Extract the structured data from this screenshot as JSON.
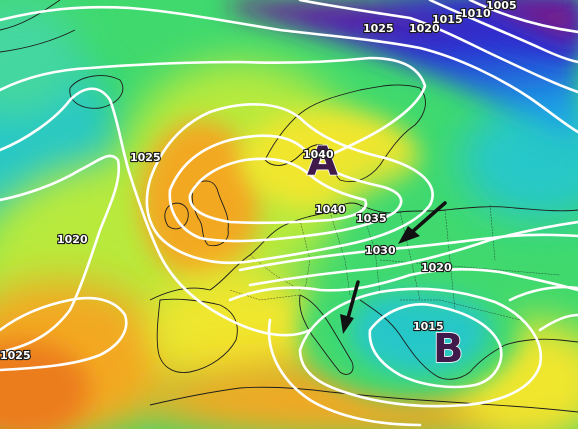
{
  "isobar_labels": [
    {
      "id": "l1005a",
      "text": "1005"
    },
    {
      "id": "l1010",
      "text": "1010"
    },
    {
      "id": "l1015a",
      "text": "1015"
    },
    {
      "id": "l1020a",
      "text": "1020"
    },
    {
      "id": "l1025a",
      "text": "1025"
    },
    {
      "id": "l1025b",
      "text": "1025"
    },
    {
      "id": "l1020b",
      "text": "1020"
    },
    {
      "id": "l1025c",
      "text": "1025"
    },
    {
      "id": "l1040a",
      "text": "1040"
    },
    {
      "id": "l1040b",
      "text": "1040"
    },
    {
      "id": "l1035",
      "text": "1035"
    },
    {
      "id": "l1030",
      "text": "1030"
    },
    {
      "id": "l1020c",
      "text": "1020"
    },
    {
      "id": "l1015b",
      "text": "1015"
    }
  ],
  "pressure_centers": {
    "high": "A",
    "low": "B"
  },
  "colors": {
    "purple": "#8a1a78",
    "blue": "#1e5fd6",
    "cyan": "#27c7c8",
    "green": "#3fd96e",
    "lime": "#b8ea3c",
    "yellow": "#f0e62e",
    "orange": "#f3a822",
    "darkorange": "#ec7d1c"
  },
  "arrows": [
    {
      "name": "arrow-northeast-flow"
    },
    {
      "name": "arrow-alps-flow"
    }
  ]
}
